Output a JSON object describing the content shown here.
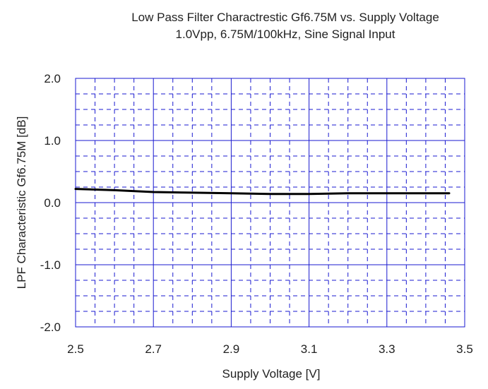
{
  "chart_data": {
    "type": "line",
    "title": "Low Pass Filter Charactrestic Gf6.75M vs. Supply Voltage",
    "subtitle": "1.0Vpp, 6.75M/100kHz, Sine Signal Input",
    "xlabel": "Supply Voltage [V]",
    "ylabel": "LPF Characteristic Gf6.75M [dB]",
    "xlim": [
      2.5,
      3.5
    ],
    "ylim": [
      -2.0,
      2.0
    ],
    "x_ticks": [
      2.5,
      2.7,
      2.9,
      3.1,
      3.3,
      3.5
    ],
    "x_tick_labels": [
      "2.5",
      "2.7",
      "2.9",
      "3.1",
      "3.3",
      "3.5"
    ],
    "y_ticks": [
      2.0,
      1.0,
      0.0,
      -1.0,
      -2.0
    ],
    "y_tick_labels": [
      "2.0",
      "1.0",
      "0.0",
      "-1.0",
      "-2.0"
    ],
    "grid": true,
    "grid_major_color": "#1a1ad0",
    "grid_minor_color": "#1a1ad0",
    "line_color": "#000000",
    "series": [
      {
        "x": [
          2.5,
          2.6,
          2.7,
          2.8,
          2.9,
          3.0,
          3.1,
          3.2,
          3.3,
          3.4,
          3.46
        ],
        "y": [
          0.22,
          0.2,
          0.17,
          0.16,
          0.15,
          0.14,
          0.14,
          0.15,
          0.15,
          0.15,
          0.15
        ]
      }
    ]
  }
}
